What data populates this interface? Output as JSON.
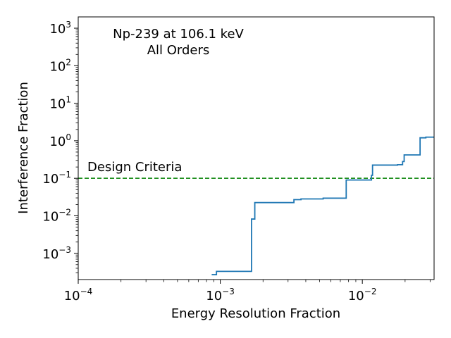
{
  "chart_data": {
    "type": "line",
    "title": "",
    "annotations": {
      "title_line1": "Np-239 at 106.1 keV",
      "title_line2": "All Orders",
      "criteria_label": "Design Criteria"
    },
    "xlabel": "Energy Resolution Fraction",
    "ylabel": "Interference Fraction",
    "xscale": "log",
    "yscale": "log",
    "xlim": [
      0.0001,
      0.032
    ],
    "ylim": [
      0.0002,
      2000
    ],
    "xticks": [
      {
        "value": 0.0001,
        "base": "10",
        "exp": "−4"
      },
      {
        "value": 0.001,
        "base": "10",
        "exp": "−3"
      },
      {
        "value": 0.01,
        "base": "10",
        "exp": "−2"
      }
    ],
    "yticks": [
      {
        "value": 0.001,
        "base": "10",
        "exp": "−3"
      },
      {
        "value": 0.01,
        "base": "10",
        "exp": "−2"
      },
      {
        "value": 0.1,
        "base": "10",
        "exp": "−1"
      },
      {
        "value": 1,
        "base": "10",
        "exp": "0"
      },
      {
        "value": 10,
        "base": "10",
        "exp": "1"
      },
      {
        "value": 100,
        "base": "10",
        "exp": "2"
      },
      {
        "value": 1000,
        "base": "10",
        "exp": "3"
      }
    ],
    "grid": false,
    "series": [
      {
        "color": "#1f77b4",
        "style": "step",
        "x": [
          0.00087,
          0.00094,
          0.00094,
          0.00166,
          0.00166,
          0.00175,
          0.00175,
          0.0033,
          0.0033,
          0.0037,
          0.0037,
          0.0053,
          0.0053,
          0.0077,
          0.0077,
          0.0116,
          0.0116,
          0.0118,
          0.0118,
          0.0177,
          0.0177,
          0.0192,
          0.0192,
          0.0197,
          0.0197,
          0.0255,
          0.0255,
          0.028,
          0.028,
          0.032
        ],
        "y": [
          0.00027,
          0.00027,
          0.00033,
          0.00033,
          0.0082,
          0.0082,
          0.0225,
          0.0225,
          0.027,
          0.027,
          0.0282,
          0.0282,
          0.0295,
          0.0295,
          0.09,
          0.09,
          0.12,
          0.12,
          0.225,
          0.225,
          0.23,
          0.23,
          0.28,
          0.28,
          0.42,
          0.42,
          1.2,
          1.2,
          1.25,
          1.25
        ]
      }
    ],
    "reference_lines": [
      {
        "y": 0.1,
        "color": "#008000",
        "style": "dashed",
        "label": "Design Criteria"
      }
    ]
  }
}
